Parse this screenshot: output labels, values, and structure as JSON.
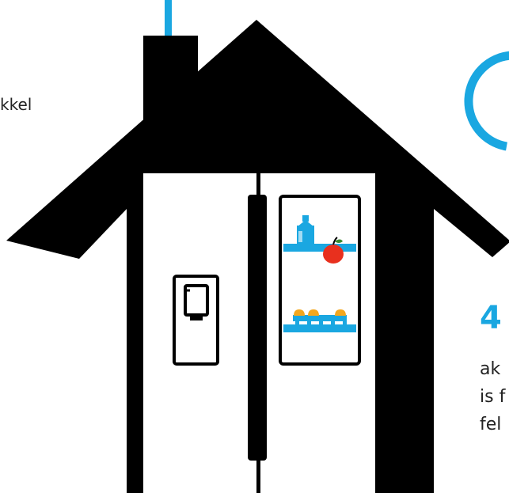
{
  "colors": {
    "house": "#000000",
    "accent": "#1aa7e1",
    "apple": "#e8301e",
    "egg": "#f4a71d",
    "background": "#ffffff"
  },
  "icons": {
    "house": "house-silhouette-icon",
    "fridge": "side-by-side-fridge-icon",
    "water_dispenser": "water-dispenser-icon",
    "milk_carton": "milk-carton-icon",
    "apple": "apple-icon",
    "eggs": "egg-tray-icon"
  },
  "texts": {
    "left_fragment": "kkel",
    "big_number": "4",
    "line1": "ak",
    "line2": "is f",
    "line3": "fel"
  }
}
